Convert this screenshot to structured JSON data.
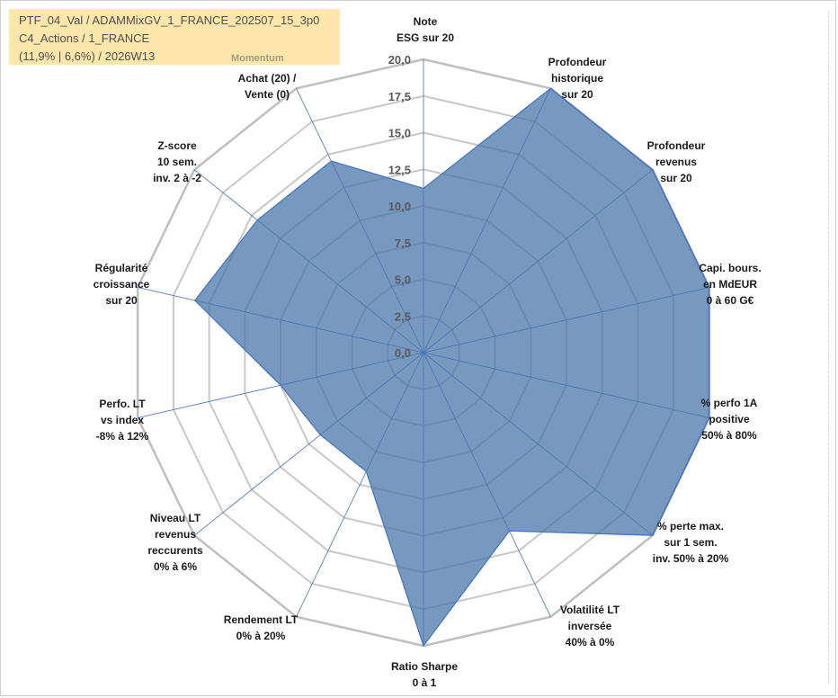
{
  "header": {
    "line1": "PTF_04_Val / ADAMMixGV_1_FRANCE_202507_15_3p0",
    "line2": "C4_Actions / 1_FRANCE",
    "line3": "(11,9% | 6,6%) / 2026W13",
    "badge": "Momentum"
  },
  "chart_data": {
    "type": "radar",
    "rmax": 20,
    "ticks": [
      "0,0",
      "2,5",
      "5,0",
      "7,5",
      "10,0",
      "12,5",
      "15,0",
      "17,5",
      "20,0"
    ],
    "categories": [
      "Note\nESG sur 20",
      "Profondeur\nhistorique\nsur 20",
      "Profondeur\nrevenus\nsur 20",
      "Capi. bours.\nen MdEUR\n0 à 60 G€",
      "% perfo 1A\npositive\n50% à 80%",
      "% perte max.\nsur 1 sem.\ninv. 50% à 20%",
      "Volatilité LT\ninversée\n40% à 0%",
      "Ratio Sharpe\n0 à 1",
      "Rendement LT\n0% à 20%",
      "Niveau LT\nrevenus\nreccurents\n0% à 6%",
      "Perfo. LT\nvs index\n-8% à 12%",
      "Régularité\ncroissance\nsur 20",
      "Z-score\n10 sem.\ninv. 2 à -2",
      "Achat (20) /\nVente (0)"
    ],
    "values": [
      11.2,
      20.0,
      20.0,
      20.0,
      20.0,
      20.0,
      13.5,
      20.0,
      9.0,
      9.0,
      10.0,
      16.0,
      14.5,
      14.5
    ],
    "colors": {
      "fill": "#4a76aa",
      "stroke": "#4472c4",
      "grid": "#c8c8c8",
      "outer": "#bfbfbf",
      "spoke": "#4472c4"
    }
  }
}
